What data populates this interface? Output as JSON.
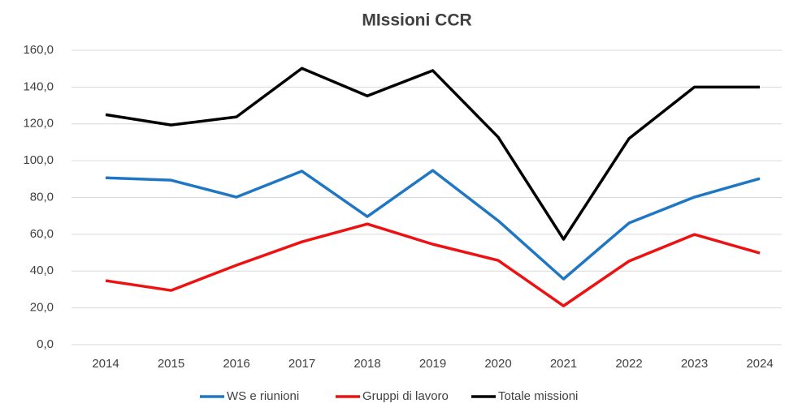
{
  "chart_data": {
    "type": "line",
    "title": "MIssioni CCR",
    "categories": [
      "2014",
      "2015",
      "2016",
      "2017",
      "2018",
      "2019",
      "2020",
      "2021",
      "2022",
      "2023",
      "2024"
    ],
    "series": [
      {
        "name": "WS e riunioni",
        "color": "#1f77c4",
        "values": [
          90.7,
          89.4,
          80.2,
          94.3,
          69.6,
          94.7,
          67.4,
          35.7,
          66.1,
          80.2,
          90.3
        ]
      },
      {
        "name": "Gruppi di lavoro",
        "color": "#ee1111",
        "values": [
          34.8,
          29.5,
          43.2,
          55.9,
          65.6,
          54.6,
          45.8,
          21.1,
          45.4,
          59.9,
          49.8
        ]
      },
      {
        "name": "Totale missioni",
        "color": "#000000",
        "values": [
          125.0,
          119.4,
          123.8,
          150.2,
          135.2,
          149.0,
          112.8,
          57.3,
          112.0,
          140.0,
          140.0
        ]
      }
    ],
    "ylim": [
      0,
      160
    ],
    "yticks": [
      {
        "value": 0,
        "label": "0,0"
      },
      {
        "value": 20,
        "label": "20,0"
      },
      {
        "value": 40,
        "label": "40,0"
      },
      {
        "value": 60,
        "label": "60,0"
      },
      {
        "value": 80,
        "label": "80,0"
      },
      {
        "value": 100,
        "label": "100,0"
      },
      {
        "value": 120,
        "label": "120,0"
      },
      {
        "value": 140,
        "label": "140,0"
      },
      {
        "value": 160,
        "label": "160,0"
      }
    ],
    "grid": true,
    "legend": "bottom"
  }
}
